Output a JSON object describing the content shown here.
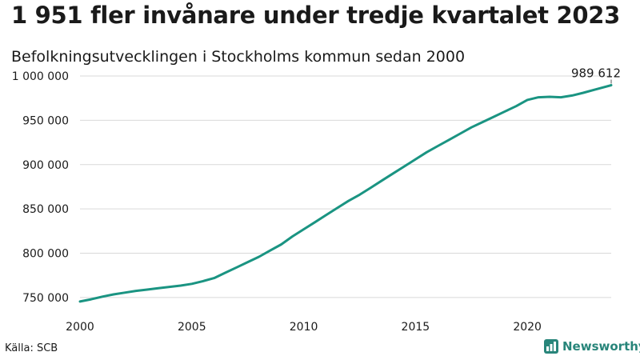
{
  "header": {
    "title": "1 951 fler invånare under tredje kvartalet 2023",
    "subtitle": "Befolkningsutvecklingen i Stockholms kommun sedan 2000"
  },
  "footer": {
    "source": "Källa: SCB",
    "brand": "Newsworthy",
    "brand_icon": "newsworthy-logo-icon"
  },
  "colors": {
    "line": "#1a9482",
    "grid": "#d9d9d9",
    "brand": "#28857a"
  },
  "chart_data": {
    "type": "line",
    "xlim": [
      2000,
      2023.75
    ],
    "ylim": [
      740000,
      1000000
    ],
    "x_ticks": [
      2000,
      2005,
      2010,
      2015,
      2020
    ],
    "x_tick_labels": [
      "2000",
      "2005",
      "2010",
      "2015",
      "2020"
    ],
    "y_ticks": [
      750000,
      800000,
      850000,
      900000,
      950000,
      1000000
    ],
    "y_tick_labels": [
      "750 000",
      "800 000",
      "850 000",
      "900 000",
      "950 000",
      "1 000 000"
    ],
    "grid": true,
    "annotation": {
      "label": "989 612",
      "x": 2023.75,
      "y": 989612
    },
    "series": [
      {
        "x": [
          2000,
          2000.5,
          2001,
          2001.5,
          2002,
          2002.5,
          2003,
          2003.5,
          2004,
          2004.5,
          2005,
          2005.5,
          2006,
          2006.5,
          2007,
          2007.5,
          2008,
          2008.5,
          2009,
          2009.5,
          2010,
          2010.5,
          2011,
          2011.5,
          2012,
          2012.5,
          2013,
          2013.5,
          2014,
          2014.5,
          2015,
          2015.5,
          2016,
          2016.5,
          2017,
          2017.5,
          2018,
          2018.5,
          2019,
          2019.5,
          2020,
          2020.5,
          2021,
          2021.5,
          2022,
          2022.5,
          2023,
          2023.75
        ],
        "y": [
          745500,
          748000,
          751000,
          753500,
          755500,
          757500,
          759000,
          760500,
          762000,
          763500,
          765500,
          768500,
          772000,
          778000,
          784000,
          790000,
          796000,
          803000,
          810000,
          819000,
          827000,
          835000,
          843000,
          851000,
          859000,
          866000,
          874000,
          882000,
          890000,
          898000,
          906000,
          914000,
          921000,
          928000,
          935000,
          942000,
          948000,
          954000,
          960000,
          966000,
          973000,
          976000,
          976500,
          976000,
          978000,
          981000,
          984500,
          989612
        ]
      }
    ]
  }
}
